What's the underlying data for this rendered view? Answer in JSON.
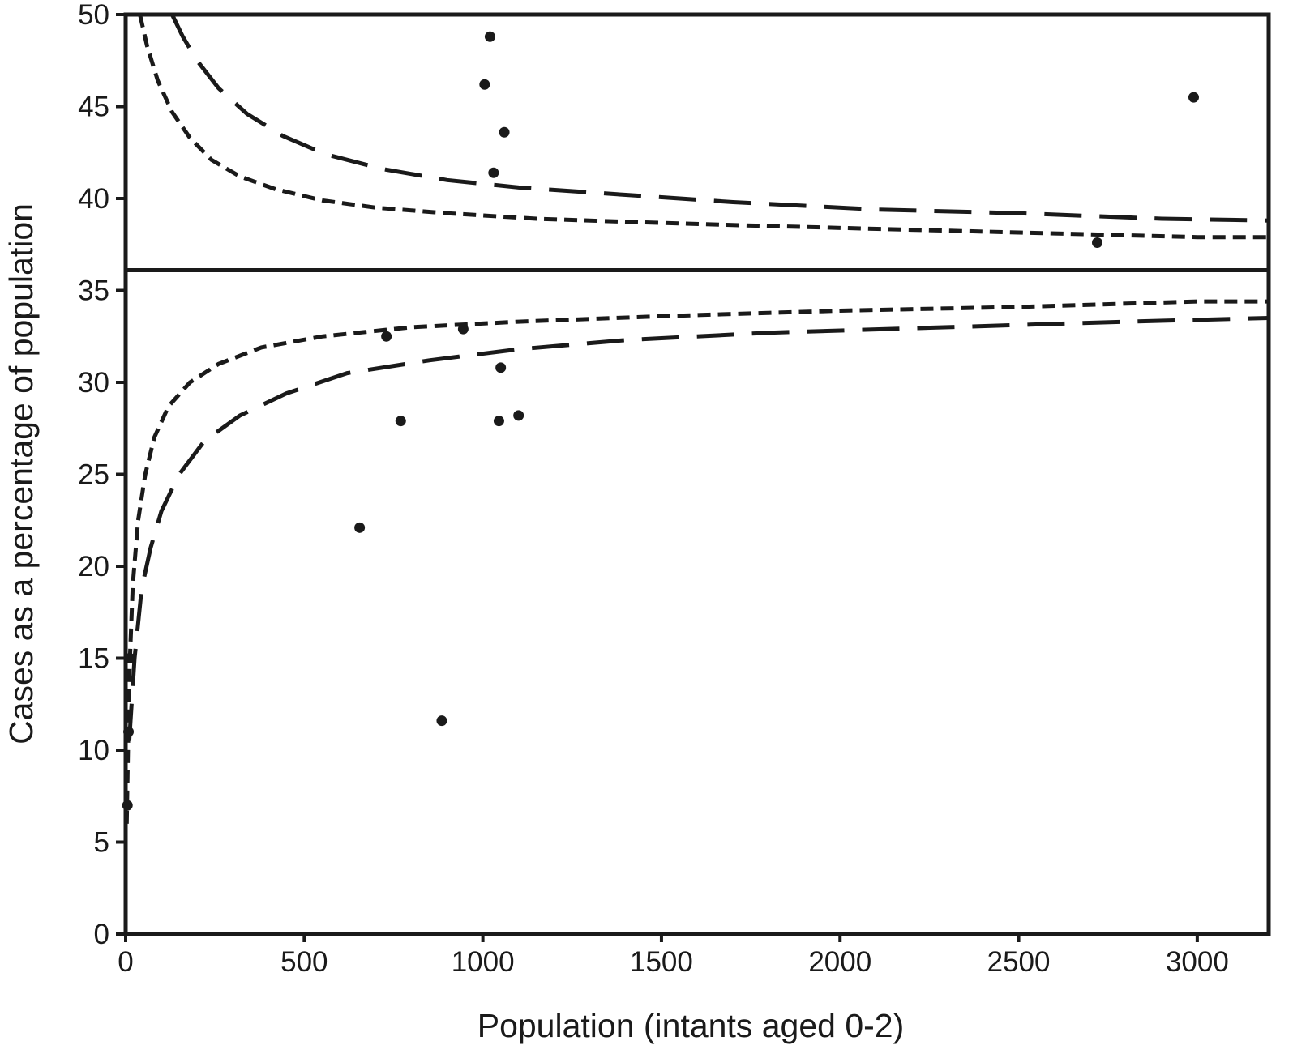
{
  "chart_data": {
    "type": "scatter",
    "title": "",
    "xlabel": "Population (intants aged 0-2)",
    "ylabel": "Cases as a percentage of population",
    "xlim": [
      0,
      3200
    ],
    "ylim": [
      0,
      50
    ],
    "x_ticks": [
      0,
      500,
      1000,
      1500,
      2000,
      2500,
      3000
    ],
    "y_ticks": [
      0,
      5,
      10,
      15,
      20,
      25,
      30,
      35,
      40,
      45,
      50
    ],
    "x_tick_labels": [
      "0",
      "500",
      "1000",
      "1500",
      "2000",
      "2500",
      "3000"
    ],
    "y_tick_labels": [
      "0",
      "5",
      "10",
      "15",
      "20",
      "25",
      "30",
      "35",
      "40",
      "45",
      "50"
    ],
    "mean_line_y": 36.1,
    "grid": false,
    "legend": "none",
    "color": "#1a1a1a",
    "points": [
      {
        "x": 1020,
        "y": 48.8
      },
      {
        "x": 1005,
        "y": 46.2
      },
      {
        "x": 1060,
        "y": 43.6
      },
      {
        "x": 1030,
        "y": 41.4
      },
      {
        "x": 2990,
        "y": 45.5
      },
      {
        "x": 2720,
        "y": 37.6
      },
      {
        "x": 730,
        "y": 32.5
      },
      {
        "x": 945,
        "y": 32.9
      },
      {
        "x": 1050,
        "y": 30.8
      },
      {
        "x": 770,
        "y": 27.9
      },
      {
        "x": 1045,
        "y": 27.9
      },
      {
        "x": 1100,
        "y": 28.2
      },
      {
        "x": 655,
        "y": 22.1
      },
      {
        "x": 885,
        "y": 11.6
      },
      {
        "x": 5,
        "y": 7
      },
      {
        "x": 8,
        "y": 11
      },
      {
        "x": 12,
        "y": 15
      }
    ],
    "series": [
      {
        "style": "short-dash",
        "side": "upper",
        "x": [
          40,
          60,
          90,
          130,
          180,
          240,
          320,
          420,
          550,
          700,
          900,
          1150,
          1450,
          1800,
          2200,
          2600,
          3000,
          3200
        ],
        "y": [
          50,
          48.3,
          46.4,
          44.7,
          43.3,
          42.1,
          41.2,
          40.5,
          39.9,
          39.5,
          39.2,
          38.9,
          38.7,
          38.5,
          38.3,
          38.1,
          37.9,
          37.9
        ]
      },
      {
        "style": "long-dash",
        "side": "upper",
        "x": [
          130,
          160,
          200,
          260,
          340,
          440,
          560,
          720,
          900,
          1100,
          1400,
          1700,
          2100,
          2500,
          2900,
          3200
        ],
        "y": [
          50,
          48.8,
          47.5,
          46.0,
          44.6,
          43.4,
          42.4,
          41.6,
          41.0,
          40.6,
          40.2,
          39.8,
          39.4,
          39.2,
          38.9,
          38.8
        ]
      },
      {
        "style": "short-dash",
        "side": "lower",
        "x": [
          3,
          10,
          20,
          35,
          55,
          80,
          120,
          180,
          260,
          380,
          550,
          800,
          1100,
          1500,
          2000,
          2500,
          3000,
          3200
        ],
        "y": [
          6.0,
          14.0,
          19.0,
          22.5,
          25.0,
          27.0,
          28.7,
          30.0,
          31.0,
          31.9,
          32.5,
          33.0,
          33.3,
          33.6,
          33.9,
          34.1,
          34.4,
          34.4
        ]
      },
      {
        "style": "long-dash",
        "side": "lower",
        "x": [
          10,
          25,
          45,
          70,
          100,
          150,
          220,
          320,
          450,
          620,
          850,
          1100,
          1400,
          1800,
          2300,
          2800,
          3200
        ],
        "y": [
          10.5,
          15.0,
          18.8,
          21.0,
          23.0,
          25.0,
          26.8,
          28.2,
          29.4,
          30.5,
          31.2,
          31.8,
          32.3,
          32.7,
          33.0,
          33.3,
          33.5
        ]
      }
    ]
  }
}
